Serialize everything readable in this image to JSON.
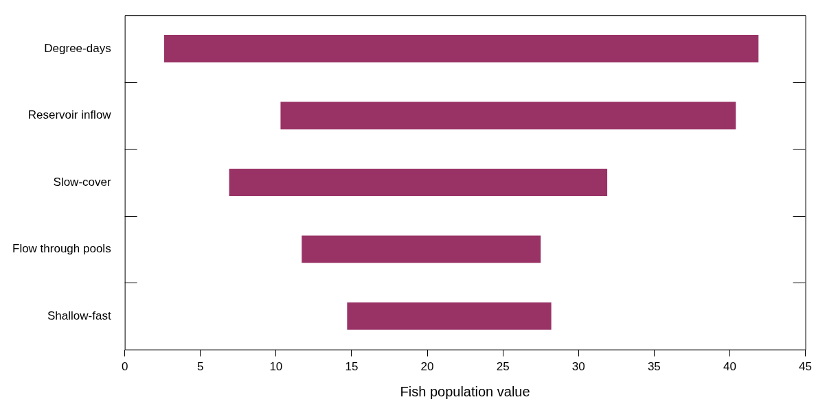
{
  "chart_data": {
    "type": "bar",
    "orientation": "horizontal",
    "xlabel": "Fish population value",
    "categories": [
      "Degree-days",
      "Reservoir inflow",
      "Slow-cover",
      "Flow through pools",
      "Shallow-fast"
    ],
    "base": [
      2.6,
      10.3,
      6.9,
      11.7,
      14.7
    ],
    "values": [
      39.3,
      30.1,
      25,
      15.8,
      13.5
    ],
    "color": "#993366",
    "xlim": [
      0,
      45
    ],
    "xticks": [
      0,
      5,
      10,
      15,
      20,
      25,
      30,
      35,
      40,
      45
    ],
    "grid": false,
    "legend": false
  }
}
